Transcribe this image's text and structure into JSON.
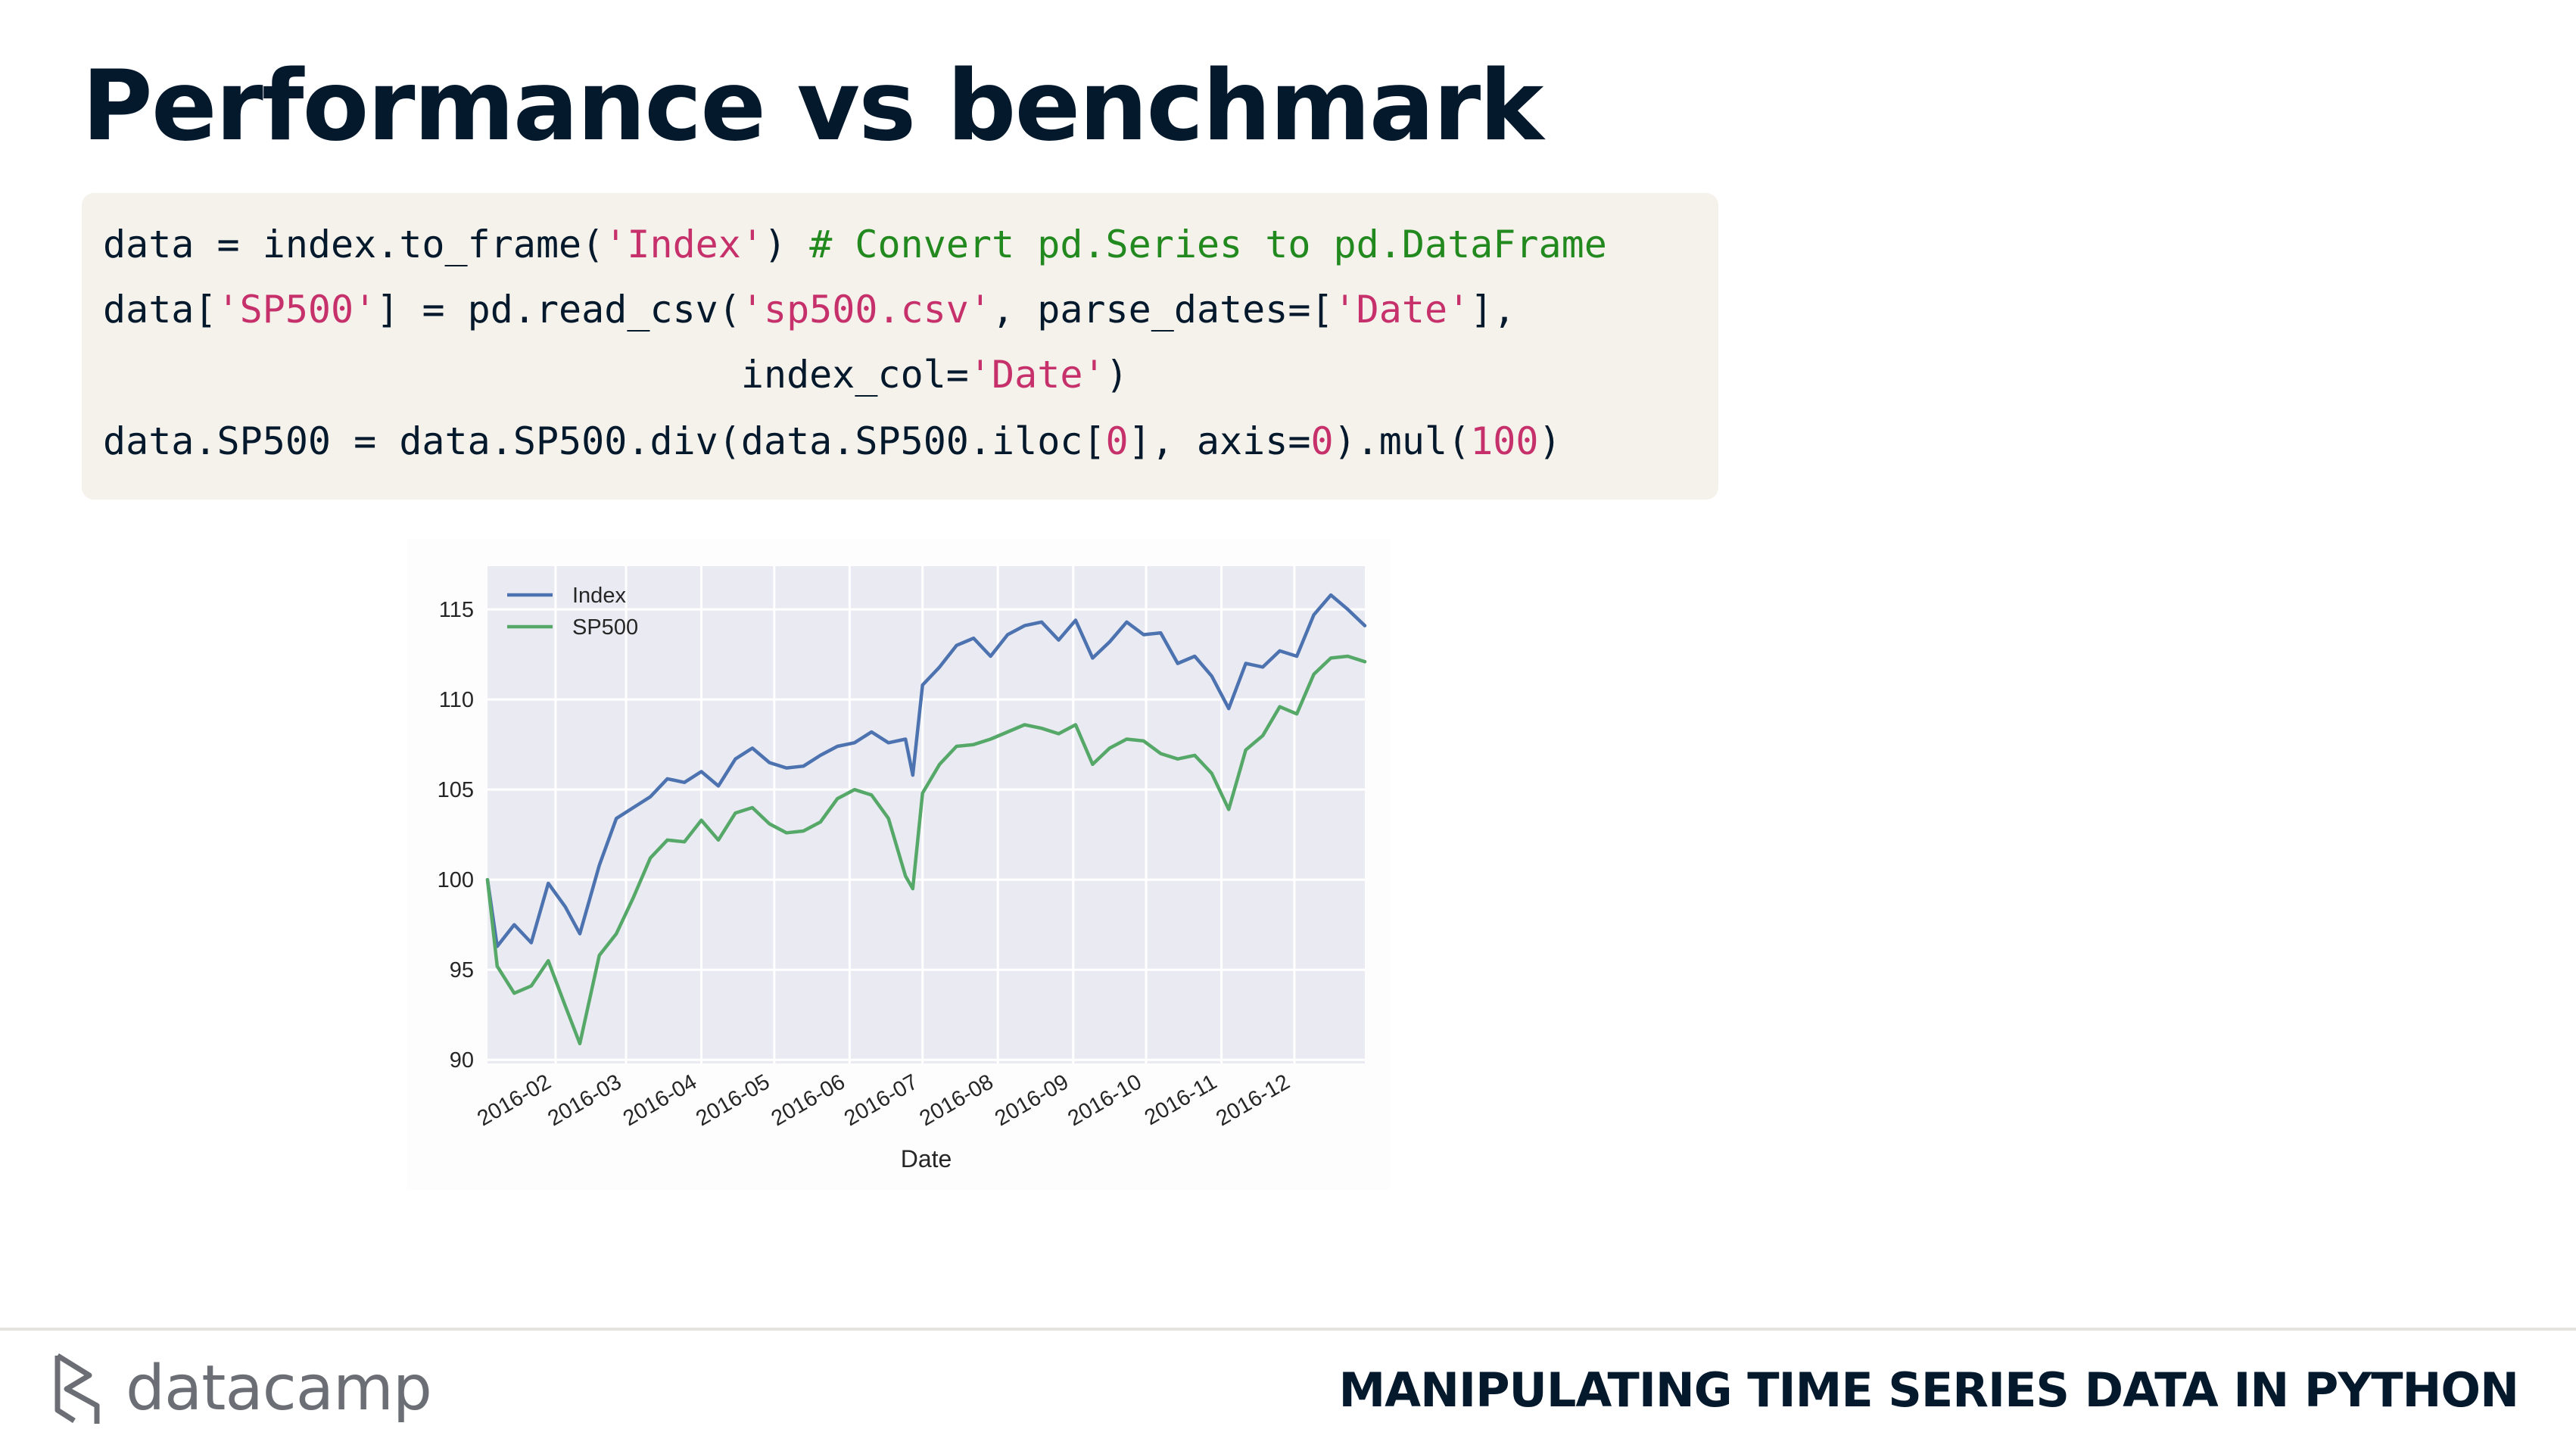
{
  "slide": {
    "title": "Performance vs benchmark",
    "course": "MANIPULATING TIME SERIES DATA IN PYTHON",
    "brand": "datacamp"
  },
  "code": {
    "line1": {
      "a": "data = index.to_frame(",
      "b": "'Index'",
      "c": ") ",
      "d": "# Convert pd.Series to pd.DataFrame"
    },
    "line2": {
      "a": "data[",
      "b": "'SP500'",
      "c": "] = pd.read_csv(",
      "d": "'sp500.csv'",
      "e": ", parse_dates=[",
      "f": "'Date'",
      "g": "],"
    },
    "line3": {
      "a": "                            index_col=",
      "b": "'Date'",
      "c": ")"
    },
    "line4": {
      "a": "data.SP500 = data.SP500.div(data.SP500.iloc[",
      "b": "0",
      "c": "], axis=",
      "d": "0",
      "e": ").mul(",
      "f": "100",
      "g": ")"
    }
  },
  "colors": {
    "index_series": "#4c72b0",
    "sp500_series": "#55a868",
    "plot_background": "#eaeaf2",
    "title_text": "#05192d"
  },
  "icons": {
    "logo": "datacamp-logo-icon"
  },
  "chart_data": {
    "type": "line",
    "xlabel": "Date",
    "ylabel": "",
    "x_ticks": [
      "2016-02",
      "2016-03",
      "2016-04",
      "2016-05",
      "2016-06",
      "2016-07",
      "2016-08",
      "2016-09",
      "2016-10",
      "2016-11",
      "2016-12"
    ],
    "x_range": [
      "2016-01-04",
      "2016-12-30"
    ],
    "y_ticks": [
      90,
      95,
      100,
      105,
      110,
      115
    ],
    "ylim": [
      89.8,
      117.4
    ],
    "grid": true,
    "legend": "upper-left",
    "series": [
      {
        "name": "Index",
        "x": [
          "2016-01-04",
          "2016-01-08",
          "2016-01-15",
          "2016-01-22",
          "2016-01-29",
          "2016-02-05",
          "2016-02-11",
          "2016-02-19",
          "2016-02-26",
          "2016-03-04",
          "2016-03-11",
          "2016-03-18",
          "2016-03-25",
          "2016-04-01",
          "2016-04-08",
          "2016-04-15",
          "2016-04-22",
          "2016-04-29",
          "2016-05-06",
          "2016-05-13",
          "2016-05-20",
          "2016-05-27",
          "2016-06-03",
          "2016-06-10",
          "2016-06-17",
          "2016-06-24",
          "2016-06-27",
          "2016-07-01",
          "2016-07-08",
          "2016-07-15",
          "2016-07-22",
          "2016-07-29",
          "2016-08-05",
          "2016-08-12",
          "2016-08-19",
          "2016-08-26",
          "2016-09-02",
          "2016-09-09",
          "2016-09-16",
          "2016-09-23",
          "2016-09-30",
          "2016-10-07",
          "2016-10-14",
          "2016-10-21",
          "2016-10-28",
          "2016-11-04",
          "2016-11-11",
          "2016-11-18",
          "2016-11-25",
          "2016-12-02",
          "2016-12-09",
          "2016-12-16",
          "2016-12-23",
          "2016-12-30"
        ],
        "values": [
          100.0,
          96.3,
          97.5,
          96.5,
          99.8,
          98.5,
          97.0,
          100.8,
          103.4,
          104.0,
          104.6,
          105.6,
          105.4,
          106.0,
          105.2,
          106.7,
          107.3,
          106.5,
          106.2,
          106.3,
          106.9,
          107.4,
          107.6,
          108.2,
          107.6,
          107.8,
          105.8,
          110.8,
          111.8,
          113.0,
          113.4,
          112.4,
          113.6,
          114.1,
          114.3,
          113.3,
          114.4,
          112.3,
          113.2,
          114.3,
          113.6,
          113.7,
          112.0,
          112.4,
          111.3,
          109.5,
          112.0,
          111.8,
          112.7,
          112.4,
          114.7,
          115.8,
          115.0,
          114.1
        ]
      },
      {
        "name": "SP500",
        "x": [
          "2016-01-04",
          "2016-01-08",
          "2016-01-15",
          "2016-01-22",
          "2016-01-29",
          "2016-02-05",
          "2016-02-11",
          "2016-02-19",
          "2016-02-26",
          "2016-03-04",
          "2016-03-11",
          "2016-03-18",
          "2016-03-25",
          "2016-04-01",
          "2016-04-08",
          "2016-04-15",
          "2016-04-22",
          "2016-04-29",
          "2016-05-06",
          "2016-05-13",
          "2016-05-20",
          "2016-05-27",
          "2016-06-03",
          "2016-06-10",
          "2016-06-17",
          "2016-06-24",
          "2016-06-27",
          "2016-07-01",
          "2016-07-08",
          "2016-07-15",
          "2016-07-22",
          "2016-07-29",
          "2016-08-05",
          "2016-08-12",
          "2016-08-19",
          "2016-08-26",
          "2016-09-02",
          "2016-09-09",
          "2016-09-16",
          "2016-09-23",
          "2016-09-30",
          "2016-10-07",
          "2016-10-14",
          "2016-10-21",
          "2016-10-28",
          "2016-11-04",
          "2016-11-11",
          "2016-11-18",
          "2016-11-25",
          "2016-12-02",
          "2016-12-09",
          "2016-12-16",
          "2016-12-23",
          "2016-12-30"
        ],
        "values": [
          100.0,
          95.2,
          93.7,
          94.1,
          95.5,
          93.0,
          90.9,
          95.8,
          97.0,
          99.0,
          101.2,
          102.2,
          102.1,
          103.3,
          102.2,
          103.7,
          104.0,
          103.1,
          102.6,
          102.7,
          103.2,
          104.5,
          105.0,
          104.7,
          103.4,
          100.2,
          99.5,
          104.8,
          106.4,
          107.4,
          107.5,
          107.8,
          108.2,
          108.6,
          108.4,
          108.1,
          108.6,
          106.4,
          107.3,
          107.8,
          107.7,
          107.0,
          106.7,
          106.9,
          105.9,
          103.9,
          107.2,
          108.0,
          109.6,
          109.2,
          111.4,
          112.3,
          112.4,
          112.1
        ]
      }
    ]
  }
}
